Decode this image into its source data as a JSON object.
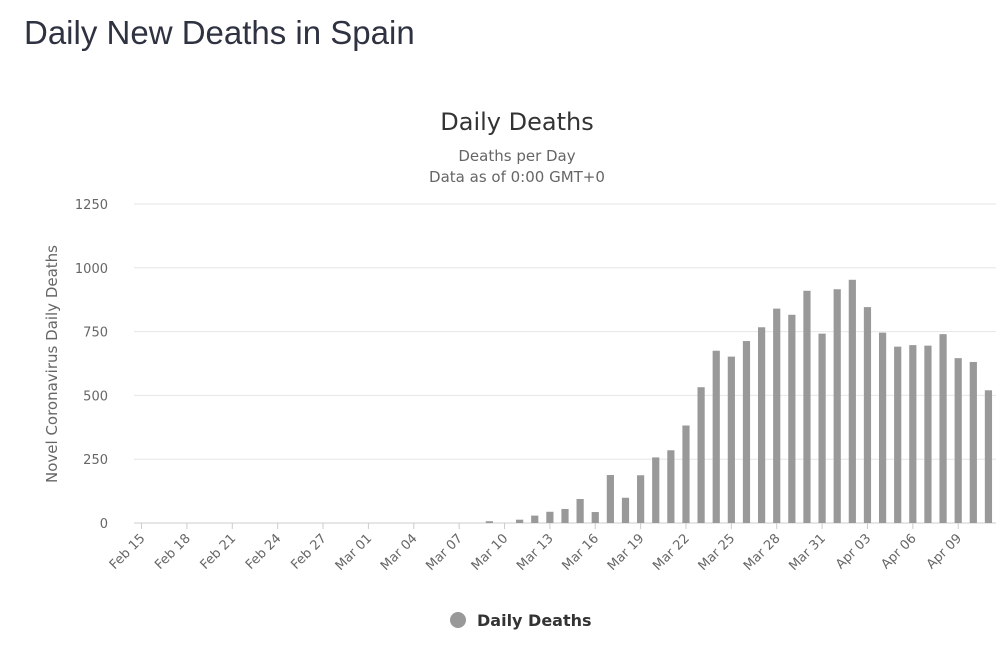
{
  "page": {
    "heading": "Daily New Deaths in Spain"
  },
  "chart_data": {
    "type": "bar",
    "title": "Daily Deaths",
    "subtitle": [
      "Deaths per Day",
      "Data as of 0:00 GMT+0"
    ],
    "ylabel": "Novel Coronavirus Daily Deaths",
    "xlabel": "",
    "ylim": [
      0,
      1250
    ],
    "yticks": [
      0,
      250,
      500,
      750,
      1000,
      1250
    ],
    "grid": true,
    "legend_position": "bottom-center",
    "colors": {
      "bar": "#999999",
      "grid": "#e6e6e6",
      "axis": "#cccccc"
    },
    "categories": [
      "Feb 15",
      "Feb 16",
      "Feb 17",
      "Feb 18",
      "Feb 19",
      "Feb 20",
      "Feb 21",
      "Feb 22",
      "Feb 23",
      "Feb 24",
      "Feb 25",
      "Feb 26",
      "Feb 27",
      "Feb 28",
      "Feb 29",
      "Mar 01",
      "Mar 02",
      "Mar 03",
      "Mar 04",
      "Mar 05",
      "Mar 06",
      "Mar 07",
      "Mar 08",
      "Mar 09",
      "Mar 10",
      "Mar 11",
      "Mar 12",
      "Mar 13",
      "Mar 14",
      "Mar 15",
      "Mar 16",
      "Mar 17",
      "Mar 18",
      "Mar 19",
      "Mar 20",
      "Mar 21",
      "Mar 22",
      "Mar 23",
      "Mar 24",
      "Mar 25",
      "Mar 26",
      "Mar 27",
      "Mar 28",
      "Mar 29",
      "Mar 30",
      "Mar 31",
      "Apr 01",
      "Apr 02",
      "Apr 03",
      "Apr 04",
      "Apr 05",
      "Apr 06",
      "Apr 07",
      "Apr 08",
      "Apr 09",
      "Apr 10",
      "Apr 11"
    ],
    "tick_labels": [
      "Feb 15",
      "Feb 18",
      "Feb 21",
      "Feb 24",
      "Feb 27",
      "Mar 01",
      "Mar 04",
      "Mar 07",
      "Mar 10",
      "Mar 13",
      "Mar 16",
      "Mar 19",
      "Mar 22",
      "Mar 25",
      "Mar 28",
      "Mar 31",
      "Apr 03",
      "Apr 06",
      "Apr 09"
    ],
    "series": [
      {
        "name": "Daily Deaths",
        "values": [
          0,
          0,
          0,
          0,
          0,
          0,
          0,
          0,
          0,
          0,
          0,
          0,
          0,
          0,
          0,
          0,
          0,
          0,
          0,
          0,
          0,
          0,
          0,
          7,
          0,
          13,
          29,
          44,
          55,
          94,
          43,
          188,
          99,
          187,
          257,
          285,
          382,
          532,
          675,
          652,
          713,
          767,
          840,
          816,
          910,
          742,
          916,
          953,
          846,
          746,
          691,
          697,
          695,
          740,
          646,
          631,
          520
        ]
      }
    ]
  }
}
